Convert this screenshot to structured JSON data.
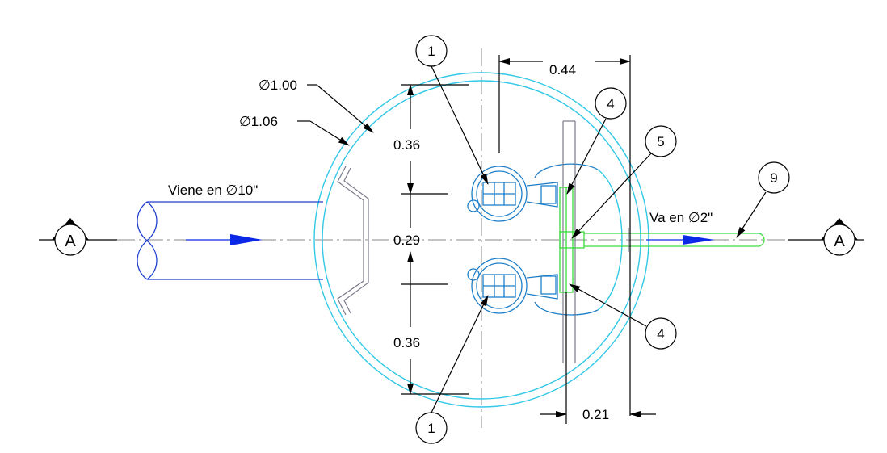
{
  "dimensions": {
    "d_inner": "∅1.00",
    "d_outer": "∅1.06",
    "top_width": "0.44",
    "spacing_top": "0.36",
    "spacing_mid": "0.29",
    "spacing_bottom": "0.36",
    "bottom_width": "0.21"
  },
  "labels": {
    "inlet": "Viene en ∅10\"",
    "outlet": "Va en ∅2\""
  },
  "section_marks": {
    "left": "A",
    "right": "A"
  },
  "balloons": {
    "pump_top": "1",
    "pump_bottom": "1",
    "check_top": "4",
    "check_bottom": "4",
    "tee": "5",
    "discharge": "9"
  },
  "colors": {
    "tank": "#32c8e6",
    "inlet_pipe": "#1f3fd0",
    "pump": "#1e7fc8",
    "discharge_pipe": "#3ddc3d",
    "flow_arrow": "#0a28e6"
  }
}
